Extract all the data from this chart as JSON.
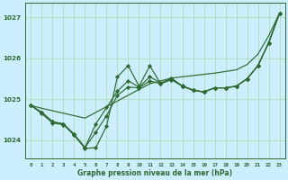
{
  "xlabel": "Graphe pression niveau de la mer (hPa)",
  "background_color": "#cceeff",
  "grid_color": "#b0ddb0",
  "line_color": "#2d6a2d",
  "x_values": [
    0,
    1,
    2,
    3,
    4,
    5,
    6,
    7,
    8,
    9,
    10,
    11,
    12,
    13,
    14,
    15,
    16,
    17,
    18,
    19,
    20,
    21,
    22,
    23
  ],
  "series_smooth": [
    1024.85,
    1024.78,
    1024.72,
    1024.66,
    1024.6,
    1024.54,
    1024.68,
    1024.82,
    1024.96,
    1025.1,
    1025.24,
    1025.38,
    1025.45,
    1025.52,
    1025.55,
    1025.58,
    1025.61,
    1025.64,
    1025.68,
    1025.72,
    1025.85,
    1026.1,
    1026.55,
    1027.1
  ],
  "series_zigzag": [
    1024.85,
    1024.65,
    1024.42,
    1024.38,
    1024.12,
    1023.8,
    1023.82,
    1024.35,
    1025.55,
    1025.82,
    1025.32,
    1025.82,
    1025.38,
    1025.52,
    1025.32,
    1025.22,
    1025.18,
    1025.28,
    1025.28,
    1025.32,
    1025.5,
    1025.82,
    1026.38,
    1027.1
  ],
  "series_mid1": [
    1024.85,
    1024.68,
    1024.45,
    1024.4,
    1024.14,
    1023.82,
    1024.2,
    1024.6,
    1025.1,
    1025.3,
    1025.28,
    1025.45,
    1025.38,
    1025.48,
    1025.32,
    1025.22,
    1025.18,
    1025.28,
    1025.28,
    1025.32,
    1025.5,
    1025.82,
    1026.38,
    1027.1
  ],
  "series_mid2": [
    1024.85,
    1024.68,
    1024.45,
    1024.4,
    1024.14,
    1023.82,
    1024.4,
    1024.8,
    1025.2,
    1025.45,
    1025.3,
    1025.55,
    1025.4,
    1025.5,
    1025.33,
    1025.23,
    1025.18,
    1025.28,
    1025.28,
    1025.32,
    1025.5,
    1025.82,
    1026.38,
    1027.1
  ],
  "ylim": [
    1023.55,
    1027.35
  ],
  "yticks": [
    1024,
    1025,
    1026,
    1027
  ],
  "xticks": [
    0,
    1,
    2,
    3,
    4,
    5,
    6,
    7,
    8,
    9,
    10,
    11,
    12,
    13,
    14,
    15,
    16,
    17,
    18,
    19,
    20,
    21,
    22,
    23
  ],
  "marker": "D",
  "markersize": 2.2,
  "linewidth": 0.85
}
